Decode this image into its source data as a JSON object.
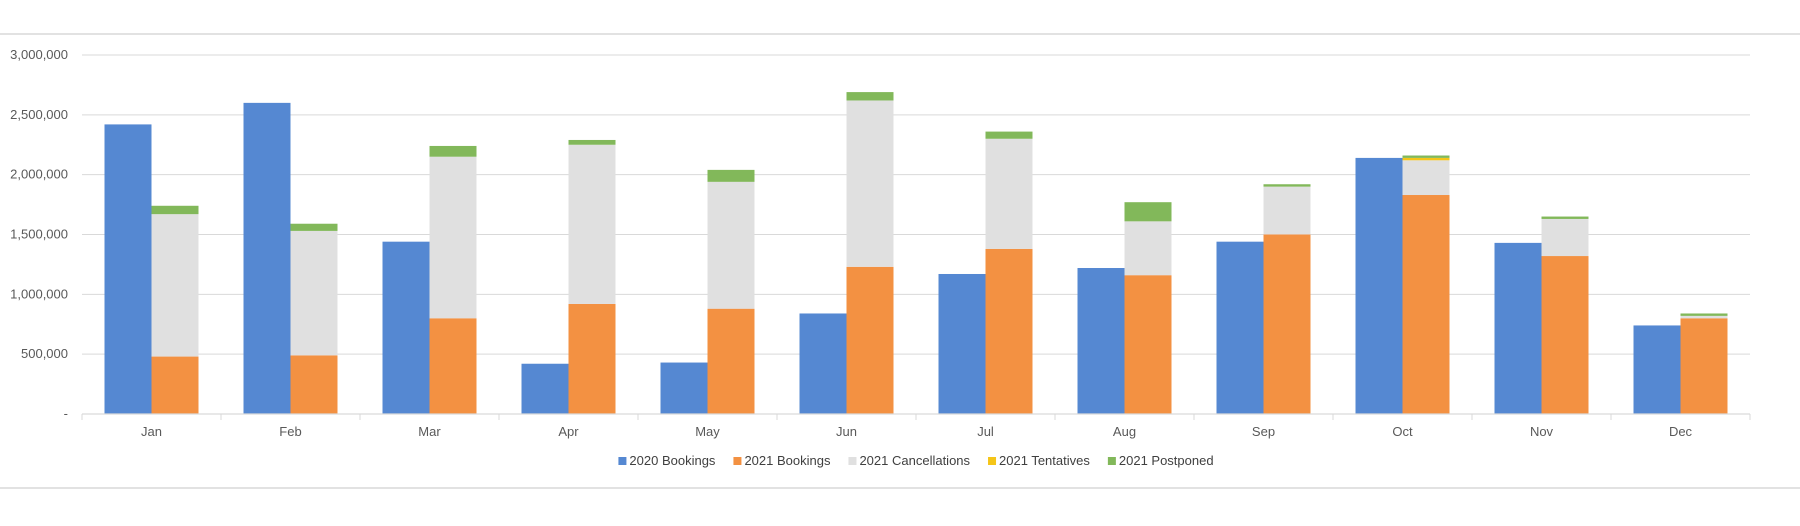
{
  "chart_data": {
    "type": "bar",
    "stacked_group": "2021",
    "categories": [
      "Jan",
      "Feb",
      "Mar",
      "Apr",
      "May",
      "Jun",
      "Jul",
      "Aug",
      "Sep",
      "Oct",
      "Nov",
      "Dec"
    ],
    "series": [
      {
        "name": "2020 Bookings",
        "color": "#5588D2",
        "stack": "2020",
        "values": [
          2420000,
          2600000,
          1440000,
          420000,
          430000,
          840000,
          1170000,
          1220000,
          1440000,
          2140000,
          1430000,
          740000
        ]
      },
      {
        "name": "2021 Bookings",
        "color": "#F39142",
        "stack": "2021",
        "values": [
          480000,
          490000,
          800000,
          920000,
          880000,
          1230000,
          1380000,
          1160000,
          1500000,
          1830000,
          1320000,
          800000
        ]
      },
      {
        "name": "2021 Cancellations",
        "color": "#E0E0E0",
        "stack": "2021",
        "values": [
          1190000,
          1040000,
          1350000,
          1330000,
          1060000,
          1390000,
          920000,
          450000,
          400000,
          290000,
          310000,
          20000
        ]
      },
      {
        "name": "2021 Tentatives",
        "color": "#F5C518",
        "stack": "2021",
        "values": [
          0,
          0,
          0,
          0,
          0,
          0,
          0,
          0,
          0,
          20000,
          0,
          0
        ]
      },
      {
        "name": "2021 Postponed",
        "color": "#82B85A",
        "stack": "2021",
        "values": [
          70000,
          60000,
          90000,
          40000,
          100000,
          70000,
          60000,
          160000,
          20000,
          20000,
          20000,
          20000
        ]
      }
    ],
    "ylim": [
      0,
      3000000
    ],
    "yticks": [
      0,
      500000,
      1000000,
      1500000,
      2000000,
      2500000,
      3000000
    ],
    "ytick_labels": [
      "-",
      "500,000",
      "1,000,000",
      "1,500,000",
      "2,000,000",
      "2,500,000",
      "3,000,000"
    ],
    "grid": true,
    "legend": "bottom"
  }
}
